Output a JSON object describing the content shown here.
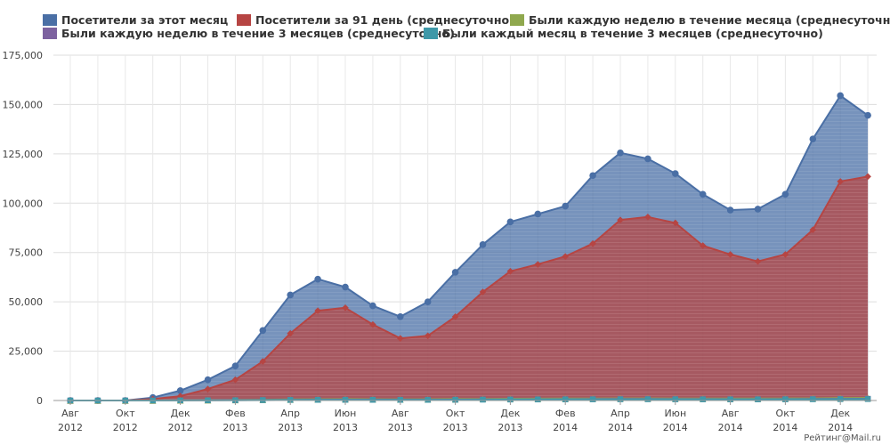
{
  "watermark": "Рейтинг@Mail.ru",
  "chart_data": {
    "type": "area",
    "title": "",
    "xlabel": "",
    "ylabel": "",
    "ylim": [
      0,
      175000
    ],
    "grid": true,
    "legend_position": "top",
    "y_ticks": [
      "0",
      "25,000",
      "50,000",
      "75,000",
      "100,000",
      "125,000",
      "150,000",
      "175,000"
    ],
    "x_labels": [
      {
        "month": "Авг",
        "year": "2012"
      },
      {
        "month": "Окт",
        "year": "2012"
      },
      {
        "month": "Дек",
        "year": "2012"
      },
      {
        "month": "Фев",
        "year": "2013"
      },
      {
        "month": "Апр",
        "year": "2013"
      },
      {
        "month": "Июн",
        "year": "2013"
      },
      {
        "month": "Авг",
        "year": "2013"
      },
      {
        "month": "Окт",
        "year": "2013"
      },
      {
        "month": "Дек",
        "year": "2013"
      },
      {
        "month": "Фев",
        "year": "2014"
      },
      {
        "month": "Апр",
        "year": "2014"
      },
      {
        "month": "Июн",
        "year": "2014"
      },
      {
        "month": "Авг",
        "year": "2014"
      },
      {
        "month": "Окт",
        "year": "2014"
      },
      {
        "month": "Дек",
        "year": "2014"
      }
    ],
    "series": [
      {
        "name": "Посетители за этот месяц",
        "color": "#4a6fa5",
        "marker": "circle",
        "values": [
          0,
          0,
          0,
          1500,
          5000,
          10500,
          17500,
          35500,
          53500,
          61500,
          57500,
          48000,
          42500,
          50000,
          65000,
          79000,
          90500,
          94500,
          98500,
          114000,
          125500,
          122500,
          115000,
          104500,
          96500,
          97000,
          104500,
          132500,
          154500,
          144500
        ]
      },
      {
        "name": "Посетители за 91 день (среднесуточно)",
        "color": "#b64543",
        "marker": "diamond",
        "values": [
          0,
          0,
          0,
          700,
          2200,
          5800,
          10500,
          19800,
          34000,
          45500,
          47000,
          38500,
          31500,
          32800,
          42500,
          55000,
          65500,
          69000,
          73000,
          79500,
          91500,
          93000,
          90000,
          78500,
          74000,
          70500,
          74000,
          86500,
          111000,
          113500
        ]
      },
      {
        "name": "Были каждую неделю в течение месяца (среднесуточно)",
        "color": "#8fa84e",
        "marker": "triangle",
        "values": [
          0,
          0,
          0,
          50,
          120,
          200,
          280,
          400,
          550,
          650,
          700,
          650,
          600,
          620,
          700,
          800,
          900,
          950,
          1000,
          1050,
          1100,
          1100,
          1050,
          1000,
          1000,
          1000,
          1050,
          1100,
          1200,
          1300
        ]
      },
      {
        "name": "Были каждую неделю в течение 3 месяцев (среднесуточно)",
        "color": "#7d62a0",
        "marker": "square",
        "values": [
          0,
          0,
          0,
          30,
          80,
          130,
          180,
          260,
          350,
          420,
          450,
          430,
          400,
          410,
          460,
          530,
          600,
          640,
          680,
          720,
          760,
          770,
          740,
          700,
          690,
          690,
          720,
          770,
          850,
          900
        ]
      },
      {
        "name": "Были каждый месяц в течение 3 месяцев (среднесуточно)",
        "color": "#3e98a8",
        "marker": "square",
        "values": [
          0,
          0,
          0,
          20,
          60,
          100,
          140,
          200,
          280,
          330,
          350,
          340,
          320,
          330,
          370,
          420,
          480,
          510,
          540,
          570,
          600,
          610,
          590,
          560,
          550,
          550,
          580,
          620,
          680,
          720
        ]
      }
    ]
  }
}
